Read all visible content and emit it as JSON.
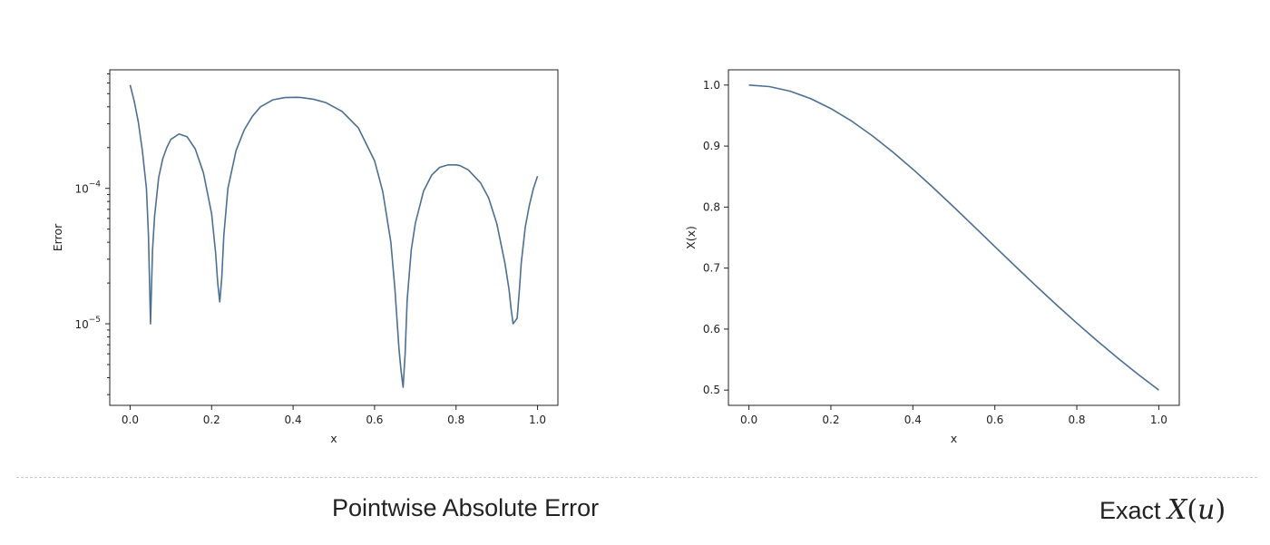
{
  "chart_data": [
    {
      "type": "line",
      "title": "",
      "xlabel": "x",
      "ylabel": "Error",
      "yscale": "log",
      "xlim": [
        -0.05,
        1.05
      ],
      "ylim": [
        2.5e-06,
        0.00075
      ],
      "xticks": [
        0.0,
        0.2,
        0.4,
        0.6,
        0.8,
        1.0
      ],
      "xtick_labels": [
        "0.0",
        "0.2",
        "0.4",
        "0.6",
        "0.8",
        "1.0"
      ],
      "yticks": [
        1e-05,
        0.0001
      ],
      "ytick_labels": [
        {
          "base": "10",
          "exp": "−5"
        },
        {
          "base": "10",
          "exp": "−4"
        }
      ],
      "grid": false,
      "color": "#4c6f93",
      "series": [
        {
          "x": [
            0.0,
            0.01,
            0.02,
            0.03,
            0.04,
            0.045,
            0.05,
            0.055,
            0.06,
            0.07,
            0.08,
            0.09,
            0.1,
            0.12,
            0.14,
            0.16,
            0.18,
            0.2,
            0.21,
            0.215,
            0.22,
            0.225,
            0.23,
            0.24,
            0.26,
            0.28,
            0.3,
            0.32,
            0.35,
            0.38,
            0.41,
            0.42,
            0.45,
            0.48,
            0.52,
            0.56,
            0.6,
            0.62,
            0.64,
            0.65,
            0.66,
            0.665,
            0.67,
            0.675,
            0.68,
            0.69,
            0.7,
            0.72,
            0.74,
            0.76,
            0.78,
            0.8,
            0.81,
            0.83,
            0.86,
            0.88,
            0.9,
            0.92,
            0.93,
            0.935,
            0.94,
            0.95,
            0.955,
            0.96,
            0.97,
            0.98,
            0.99,
            1.0
          ],
          "y": [
            0.00058,
            0.00044,
            0.00031,
            0.00019,
            0.0001,
            4.5e-05,
            1e-05,
            3.5e-05,
            6.2e-05,
            0.00012,
            0.000165,
            0.0002,
            0.00023,
            0.000252,
            0.00024,
            0.000195,
            0.00013,
            6.5e-05,
            3.3e-05,
            2e-05,
            1.45e-05,
            2.2e-05,
            4.5e-05,
            0.0001,
            0.00019,
            0.00027,
            0.00034,
            0.0004,
            0.00045,
            0.000468,
            0.00047,
            0.000468,
            0.000455,
            0.00043,
            0.00037,
            0.00028,
            0.00016,
            9.5e-05,
            4e-05,
            1.8e-05,
            6.5e-06,
            4.5e-06,
            3.4e-06,
            6e-06,
            1.5e-05,
            3.5e-05,
            5.5e-05,
            9.5e-05,
            0.000125,
            0.000143,
            0.000149,
            0.000149,
            0.000147,
            0.000137,
            0.00011,
            8.5e-05,
            5.5e-05,
            2.8e-05,
            1.8e-05,
            1.3e-05,
            1e-05,
            1.1e-05,
            1.7e-05,
            2.8e-05,
            5.2e-05,
            7.5e-05,
            0.0001,
            0.000123
          ]
        }
      ],
      "caption": "Pointwise Absolute Error"
    },
    {
      "type": "line",
      "title": "",
      "xlabel": "x",
      "ylabel": "X(x)",
      "xlim": [
        -0.05,
        1.05
      ],
      "ylim": [
        0.475,
        1.025
      ],
      "xticks": [
        0.0,
        0.2,
        0.4,
        0.6,
        0.8,
        1.0
      ],
      "xtick_labels": [
        "0.0",
        "0.2",
        "0.4",
        "0.6",
        "0.8",
        "1.0"
      ],
      "yticks": [
        0.5,
        0.6,
        0.7,
        0.8,
        0.9,
        1.0
      ],
      "ytick_labels": [
        "0.5",
        "0.6",
        "0.7",
        "0.8",
        "0.9",
        "1.0"
      ],
      "grid": false,
      "color": "#4c6f93",
      "series": [
        {
          "x": [
            0.0,
            0.05,
            0.1,
            0.15,
            0.2,
            0.25,
            0.3,
            0.35,
            0.4,
            0.45,
            0.5,
            0.55,
            0.6,
            0.65,
            0.7,
            0.75,
            0.8,
            0.85,
            0.9,
            0.95,
            1.0
          ],
          "y": [
            1.0,
            0.9975,
            0.9901,
            0.978,
            0.9615,
            0.9412,
            0.9174,
            0.8909,
            0.8621,
            0.8316,
            0.8,
            0.7678,
            0.7353,
            0.703,
            0.6711,
            0.64,
            0.6098,
            0.5806,
            0.5525,
            0.5256,
            0.5
          ]
        }
      ],
      "caption_text": "Exact",
      "caption_math": {
        "symbol": "X",
        "open": "(",
        "var": "u",
        "close": ")"
      }
    }
  ]
}
